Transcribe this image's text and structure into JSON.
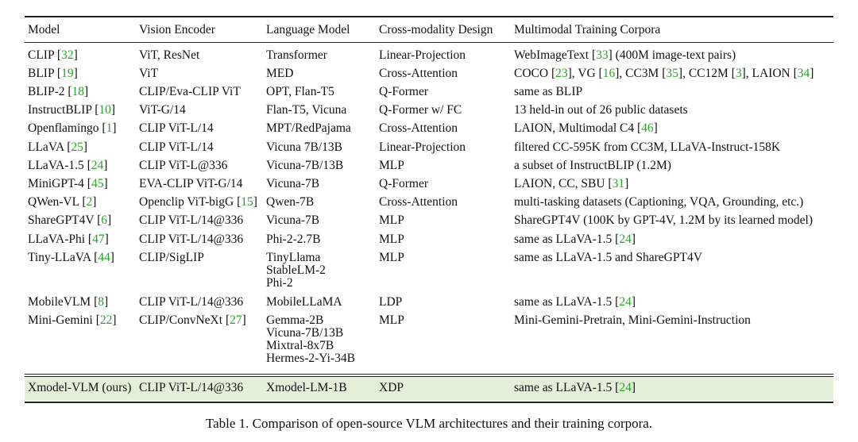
{
  "table": {
    "headers": [
      "Model",
      "Vision Encoder",
      "Language Model",
      "Cross-modality Design",
      "Multimodal Training Corpora"
    ],
    "rows": [
      {
        "model": "CLIP [32]",
        "vision": "ViT, ResNet",
        "language": "Transformer",
        "cross": "Linear-Projection",
        "corpora": "WebImageText [33] (400M image-text pairs)"
      },
      {
        "model": "BLIP [19]",
        "vision": "ViT",
        "language": "MED",
        "cross": "Cross-Attention",
        "corpora": "COCO [23], VG [16], CC3M [35], CC12M [3], LAION [34]"
      },
      {
        "model": "BLIP-2 [18]",
        "vision": "CLIP/Eva-CLIP ViT",
        "language": "OPT, Flan-T5",
        "cross": "Q-Former",
        "corpora": "same as BLIP"
      },
      {
        "model": "InstructBLIP [10]",
        "vision": "ViT-G/14",
        "language": "Flan-T5, Vicuna",
        "cross": "Q-Former w/ FC",
        "corpora": "13 held-in out of 26 public datasets"
      },
      {
        "model": "Openflamingo [1]",
        "vision": "CLIP ViT-L/14",
        "language": "MPT/RedPajama",
        "cross": "Cross-Attention",
        "corpora": "LAION, Multimodal C4 [46]"
      },
      {
        "model": "LLaVA [25]",
        "vision": "CLIP ViT-L/14",
        "language": "Vicuna 7B/13B",
        "cross": "Linear-Projection",
        "corpora": "filtered CC-595K from CC3M, LLaVA-Instruct-158K"
      },
      {
        "model": "LLaVA-1.5 [24]",
        "vision": "CLIP ViT-L@336",
        "language": "Vicuna-7B/13B",
        "cross": "MLP",
        "corpora": "a subset of InstructBLIP (1.2M)"
      },
      {
        "model": "MiniGPT-4 [45]",
        "vision": "EVA-CLIP ViT-G/14",
        "language": "Vicuna-7B",
        "cross": "Q-Former",
        "corpora": "LAION, CC, SBU [31]"
      },
      {
        "model": "QWen-VL [2]",
        "vision": "Openclip ViT-bigG [15]",
        "language": "Qwen-7B",
        "cross": "Cross-Attention",
        "corpora": "multi-tasking datasets (Captioning, VQA, Grounding, etc.)"
      },
      {
        "model": "ShareGPT4V [6]",
        "vision": "CLIP ViT-L/14@336",
        "language": "Vicuna-7B",
        "cross": "MLP",
        "corpora": "ShareGPT4V (100K by GPT-4V, 1.2M by its learned model)"
      },
      {
        "model": "LLaVA-Phi [47]",
        "vision": "CLIP ViT-L/14@336",
        "language": "Phi-2-2.7B",
        "cross": "MLP",
        "corpora": "same as LLaVA-1.5 [24]"
      },
      {
        "model": "Tiny-LLaVA [44]",
        "vision": "CLIP/SigLIP",
        "language": "TinyLlama\nStableLM-2\nPhi-2",
        "cross": "MLP",
        "corpora": "same as LLaVA-1.5 and ShareGPT4V"
      },
      {
        "model": "MobileVLM [8]",
        "vision": "CLIP ViT-L/14@336",
        "language": "MobileLLaMA",
        "cross": "LDP",
        "corpora": "same as LLaVA-1.5 [24]"
      },
      {
        "model": "Mini-Gemini [22]",
        "vision": "CLIP/ConvNeXt [27]",
        "language": "Gemma-2B\nVicuna-7B/13B\nMixtral-8x7B\nHermes-2-Yi-34B",
        "cross": "MLP",
        "corpora": "Mini-Gemini-Pretrain, Mini-Gemini-Instruction"
      }
    ],
    "highlight_row": {
      "model": "Xmodel-VLM (ours)",
      "vision": "CLIP ViT-L/14@336",
      "language": "Xmodel-LM-1B",
      "cross": "XDP",
      "corpora": "same as LLaVA-1.5 [24]"
    }
  },
  "caption": "Table 1. Comparison of open-source VLM architectures and their training corpora.",
  "colors": {
    "citation": "#2aa12a",
    "highlight": "#e4efd9"
  }
}
